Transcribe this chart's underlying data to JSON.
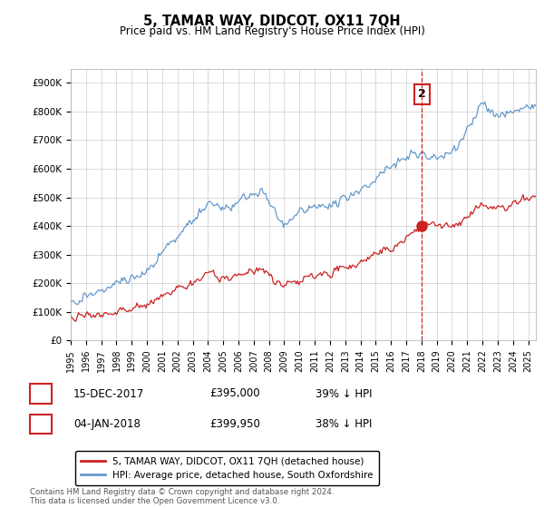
{
  "title": "5, TAMAR WAY, DIDCOT, OX11 7QH",
  "subtitle": "Price paid vs. HM Land Registry's House Price Index (HPI)",
  "ylabel_ticks": [
    "£0",
    "£100K",
    "£200K",
    "£300K",
    "£400K",
    "£500K",
    "£600K",
    "£700K",
    "£800K",
    "£900K"
  ],
  "ytick_values": [
    0,
    100000,
    200000,
    300000,
    400000,
    500000,
    600000,
    700000,
    800000,
    900000
  ],
  "ylim": [
    0,
    950000
  ],
  "hpi_color": "#6699cc",
  "price_color": "#cc2222",
  "marker_color": "#cc2222",
  "annotation_box_color": "#cc2222",
  "legend_label_price": "5, TAMAR WAY, DIDCOT, OX11 7QH (detached house)",
  "legend_label_hpi": "HPI: Average price, detached house, South Oxfordshire",
  "sale2_date_num": 2018.03,
  "sale2_price": 399950,
  "sale2_label": "2",
  "table_rows": [
    {
      "num": "1",
      "date": "15-DEC-2017",
      "price": "£395,000",
      "hpi": "39% ↓ HPI"
    },
    {
      "num": "2",
      "date": "04-JAN-2018",
      "price": "£399,950",
      "hpi": "38% ↓ HPI"
    }
  ],
  "footer": "Contains HM Land Registry data © Crown copyright and database right 2024.\nThis data is licensed under the Open Government Licence v3.0.",
  "background_color": "#ffffff",
  "grid_color": "#cccccc"
}
